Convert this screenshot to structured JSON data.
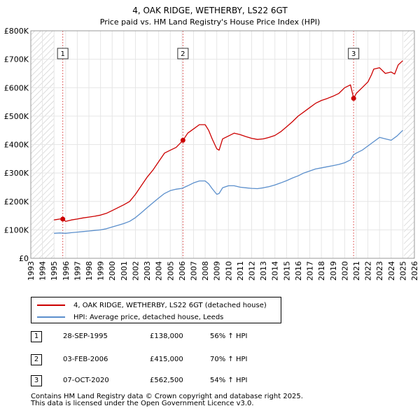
{
  "chart_data": {
    "type": "line",
    "title": "4, OAK RIDGE, WETHERBY, LS22 6GT",
    "subtitle": "Price paid vs. HM Land Registry's House Price Index (HPI)",
    "xlabel": "",
    "ylabel": "",
    "xlim": [
      1993,
      2026
    ],
    "ylim": [
      0,
      800000
    ],
    "x_ticks": [
      "1993",
      "1994",
      "1995",
      "1996",
      "1997",
      "1998",
      "1999",
      "2000",
      "2001",
      "2002",
      "2003",
      "2004",
      "2005",
      "2006",
      "2007",
      "2008",
      "2009",
      "2010",
      "2011",
      "2012",
      "2013",
      "2014",
      "2015",
      "2016",
      "2017",
      "2018",
      "2019",
      "2020",
      "2021",
      "2022",
      "2023",
      "2024",
      "2025",
      "2026"
    ],
    "y_ticks": [
      {
        "value": 0,
        "label": "£0"
      },
      {
        "value": 100000,
        "label": "£100K"
      },
      {
        "value": 200000,
        "label": "£200K"
      },
      {
        "value": 300000,
        "label": "£300K"
      },
      {
        "value": 400000,
        "label": "£400K"
      },
      {
        "value": 500000,
        "label": "£500K"
      },
      {
        "value": 600000,
        "label": "£600K"
      },
      {
        "value": 700000,
        "label": "£700K"
      },
      {
        "value": 800000,
        "label": "£800K"
      }
    ],
    "grid": true,
    "hatched_ranges": [
      [
        1993,
        1995.0
      ],
      [
        2025.1,
        2026
      ]
    ],
    "series": [
      {
        "name": "4, OAK RIDGE, WETHERBY, LS22 6GT (detached house)",
        "color": "#cc0000",
        "x": [
          1995.0,
          1995.5,
          1995.75,
          1996.0,
          1996.5,
          1997.0,
          1997.5,
          1998.0,
          1998.5,
          1999.0,
          1999.5,
          2000.0,
          2000.5,
          2001.0,
          2001.5,
          2002.0,
          2002.5,
          2003.0,
          2003.5,
          2004.0,
          2004.5,
          2005.0,
          2005.5,
          2006.1,
          2006.5,
          2007.0,
          2007.5,
          2008.0,
          2008.3,
          2008.6,
          2009.0,
          2009.2,
          2009.5,
          2010.0,
          2010.5,
          2011.0,
          2011.5,
          2012.0,
          2012.5,
          2013.0,
          2013.5,
          2014.0,
          2014.5,
          2015.0,
          2015.5,
          2016.0,
          2016.5,
          2017.0,
          2017.5,
          2018.0,
          2018.5,
          2019.0,
          2019.5,
          2020.0,
          2020.5,
          2020.77,
          2021.0,
          2021.5,
          2022.0,
          2022.3,
          2022.5,
          2023.0,
          2023.5,
          2024.0,
          2024.3,
          2024.6,
          2025.0
        ],
        "values": [
          135000,
          138000,
          138000,
          130000,
          135000,
          138000,
          142000,
          145000,
          148000,
          152000,
          158000,
          168000,
          178000,
          188000,
          200000,
          225000,
          255000,
          285000,
          310000,
          340000,
          370000,
          380000,
          390000,
          415000,
          440000,
          455000,
          470000,
          470000,
          450000,
          420000,
          385000,
          380000,
          420000,
          430000,
          440000,
          435000,
          428000,
          422000,
          418000,
          420000,
          425000,
          432000,
          445000,
          462000,
          480000,
          500000,
          515000,
          530000,
          545000,
          555000,
          562000,
          570000,
          580000,
          600000,
          610000,
          562500,
          580000,
          600000,
          620000,
          645000,
          665000,
          670000,
          650000,
          655000,
          648000,
          680000,
          695000
        ]
      },
      {
        "name": "HPI: Average price, detached house, Leeds",
        "color": "#5b8fcc",
        "x": [
          1995.0,
          1995.5,
          1996.0,
          1996.5,
          1997.0,
          1997.5,
          1998.0,
          1998.5,
          1999.0,
          1999.5,
          2000.0,
          2000.5,
          2001.0,
          2001.5,
          2002.0,
          2002.5,
          2003.0,
          2003.5,
          2004.0,
          2004.5,
          2005.0,
          2005.5,
          2006.0,
          2006.5,
          2007.0,
          2007.5,
          2008.0,
          2008.3,
          2008.6,
          2009.0,
          2009.2,
          2009.5,
          2010.0,
          2010.5,
          2011.0,
          2011.5,
          2012.0,
          2012.5,
          2013.0,
          2013.5,
          2014.0,
          2014.5,
          2015.0,
          2015.5,
          2016.0,
          2016.5,
          2017.0,
          2017.5,
          2018.0,
          2018.5,
          2019.0,
          2019.5,
          2020.0,
          2020.5,
          2020.77,
          2021.0,
          2021.5,
          2022.0,
          2022.5,
          2023.0,
          2023.5,
          2024.0,
          2024.5,
          2025.0
        ],
        "values": [
          88000,
          89000,
          88000,
          90000,
          92000,
          94000,
          96000,
          98000,
          100000,
          104000,
          110000,
          116000,
          122000,
          130000,
          143000,
          160000,
          178000,
          195000,
          212000,
          228000,
          238000,
          243000,
          246000,
          255000,
          265000,
          272000,
          272000,
          262000,
          245000,
          225000,
          228000,
          248000,
          255000,
          255000,
          250000,
          248000,
          246000,
          245000,
          248000,
          252000,
          258000,
          265000,
          273000,
          282000,
          290000,
          300000,
          307000,
          314000,
          318000,
          322000,
          326000,
          330000,
          336000,
          346000,
          364000,
          370000,
          380000,
          395000,
          410000,
          425000,
          420000,
          415000,
          430000,
          450000
        ]
      }
    ],
    "markers": [
      {
        "id": "1",
        "x": 1995.75,
        "value": 138000
      },
      {
        "id": "2",
        "x": 2006.09,
        "value": 415000
      },
      {
        "id": "3",
        "x": 2020.77,
        "value": 562500
      }
    ],
    "marker_label_value": 720000
  },
  "legend": {
    "items": [
      {
        "label": "4, OAK RIDGE, WETHERBY, LS22 6GT (detached house)",
        "color": "#cc0000"
      },
      {
        "label": "HPI: Average price, detached house, Leeds",
        "color": "#5b8fcc"
      }
    ]
  },
  "sales": [
    {
      "num": "1",
      "date": "28-SEP-1995",
      "price": "£138,000",
      "hpi": "56% ↑ HPI"
    },
    {
      "num": "2",
      "date": "03-FEB-2006",
      "price": "£415,000",
      "hpi": "70% ↑ HPI"
    },
    {
      "num": "3",
      "date": "07-OCT-2020",
      "price": "£562,500",
      "hpi": "54% ↑ HPI"
    }
  ],
  "footer": {
    "line1": "Contains HM Land Registry data © Crown copyright and database right 2025.",
    "line2": "This data is licensed under the Open Government Licence v3.0."
  }
}
